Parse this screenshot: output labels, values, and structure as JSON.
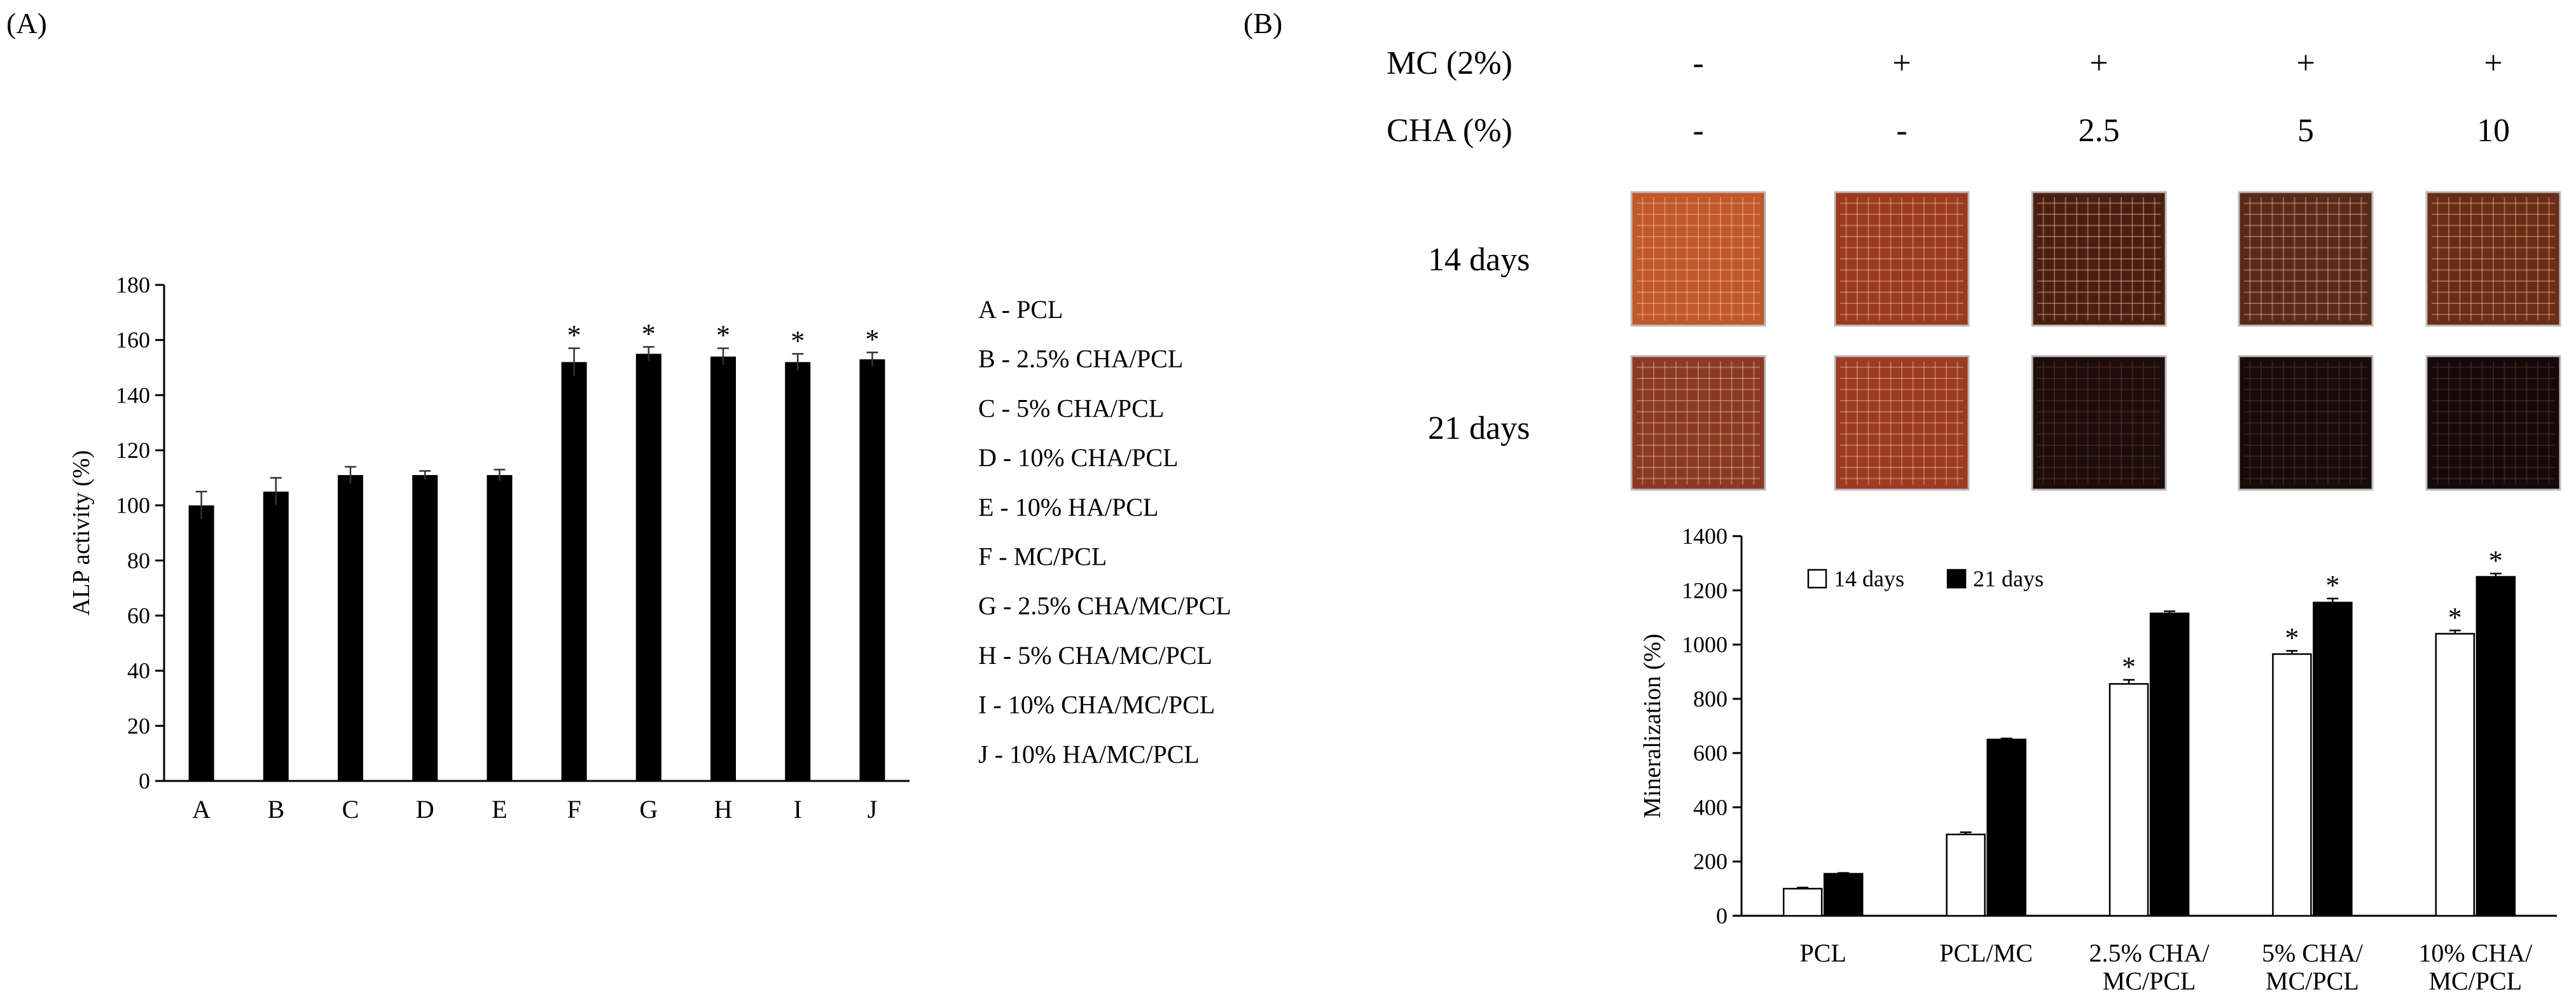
{
  "panel_a": {
    "label": "(A)"
  },
  "panel_b": {
    "label": "(B)",
    "table": {
      "mc_label": "MC (2%)",
      "cha_label": "CHA (%)",
      "mc_values": [
        "-",
        "+",
        "+",
        "+",
        "+"
      ],
      "cha_values": [
        "-",
        "-",
        "2.5",
        "5",
        "10"
      ],
      "row_labels": [
        "14 days",
        "21 days"
      ],
      "colors": {
        "14 days": [
          "#c0582a",
          "#9a3a1e",
          "#4a1f12",
          "#5a2a18",
          "#6b2d17"
        ],
        "21 days": [
          "#8a3a22",
          "#9c3a22",
          "#1e0d0a",
          "#190b0a",
          "#170909"
        ]
      }
    }
  },
  "chart_data": [
    {
      "type": "bar",
      "categories": [
        "A",
        "B",
        "C",
        "D",
        "E",
        "F",
        "G",
        "H",
        "I",
        "J"
      ],
      "values": [
        100,
        105,
        111,
        111,
        111,
        152,
        155,
        154,
        152,
        153
      ],
      "errors": [
        5,
        5,
        3,
        1.5,
        2,
        5,
        2.5,
        3,
        3,
        2.5
      ],
      "significant": [
        false,
        false,
        false,
        false,
        false,
        true,
        true,
        true,
        true,
        true
      ],
      "significance_marker": "*",
      "ylabel": "ALP activity (%)",
      "ylim": [
        0,
        180
      ],
      "yticks": [
        0,
        20,
        40,
        60,
        80,
        100,
        120,
        140,
        160,
        180
      ],
      "legend": [
        "A - PCL",
        "B - 2.5% CHA/PCL",
        "C - 5% CHA/PCL",
        "D - 10% CHA/PCL",
        "E - 10% HA/PCL",
        "F - MC/PCL",
        "G - 2.5% CHA/MC/PCL",
        "H - 5% CHA/MC/PCL",
        "I - 10% CHA/MC/PCL",
        "J - 10% HA/MC/PCL"
      ],
      "legend_placement": "right",
      "grid": false,
      "bar_color": "#000000"
    },
    {
      "type": "bar",
      "categories": [
        [
          "PCL"
        ],
        [
          "PCL/MC"
        ],
        [
          "2.5% CHA/",
          "MC/PCL"
        ],
        [
          "5% CHA/",
          "MC/PCL"
        ],
        [
          "10% CHA/",
          "MC/PCL"
        ]
      ],
      "series": [
        {
          "name": "14 days",
          "values": [
            100,
            300,
            855,
            965,
            1040
          ],
          "errors": [
            4,
            8,
            15,
            12,
            12
          ],
          "significant": [
            false,
            false,
            true,
            true,
            true
          ],
          "fill": "#ffffff"
        },
        {
          "name": "21 days",
          "values": [
            155,
            650,
            1115,
            1155,
            1250
          ],
          "errors": [
            3,
            4,
            8,
            15,
            12
          ],
          "significant": [
            false,
            false,
            false,
            true,
            true
          ],
          "fill": "#000000"
        }
      ],
      "significance_marker": "*",
      "ylabel": "Mineralization (%)",
      "ylim": [
        0,
        1400
      ],
      "yticks": [
        0,
        200,
        400,
        600,
        800,
        1000,
        1200,
        1400
      ],
      "legend_placement": "top-left",
      "grid": false
    }
  ]
}
